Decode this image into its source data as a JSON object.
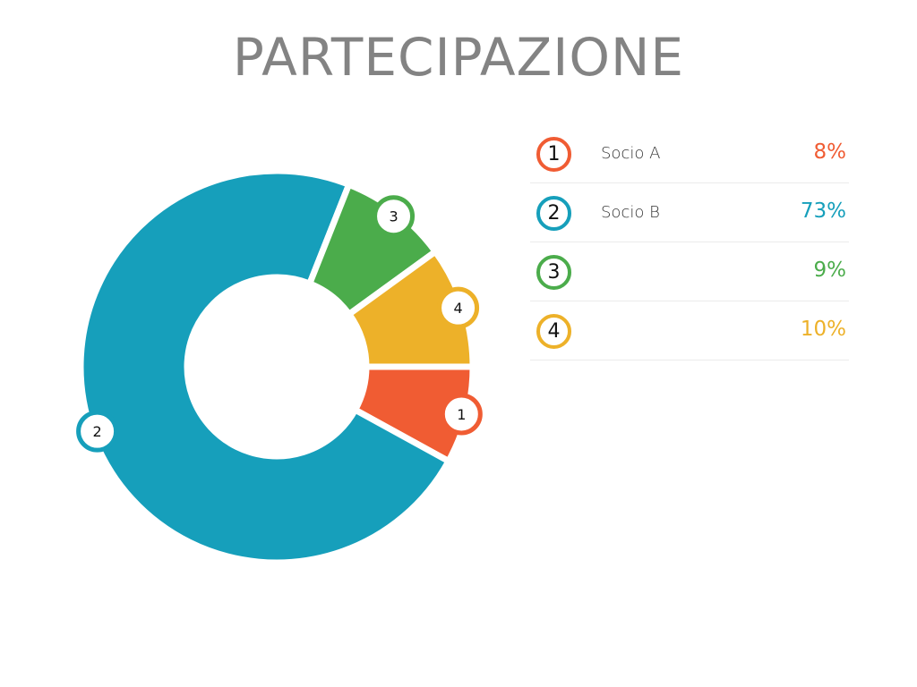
{
  "chart_data": {
    "type": "pie",
    "variant": "donut",
    "title": "PARTECIPAZIONE",
    "slices": [
      {
        "label": "1",
        "name": "Socio A",
        "value": 8,
        "display": "8%",
        "color": "#F05C33"
      },
      {
        "label": "2",
        "name": "Socio B",
        "value": 73,
        "display": "73%",
        "color": "#169FBB"
      },
      {
        "label": "3",
        "name": "",
        "value": 9,
        "display": "9%",
        "color": "#4BAC4B"
      },
      {
        "label": "4",
        "name": "",
        "value": 10,
        "display": "10%",
        "color": "#EDB129"
      }
    ],
    "legend_placement": "right"
  }
}
